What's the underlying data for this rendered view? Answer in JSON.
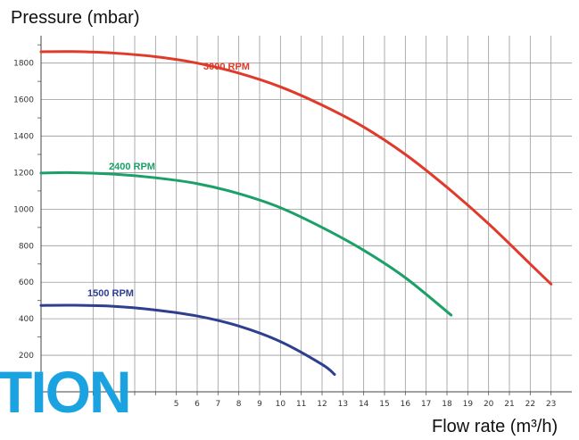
{
  "chart_data": {
    "type": "line",
    "ylabel": "Pressure (mbar)",
    "xlabel": "Flow rate (m³/h)",
    "xlim": [
      -1.5,
      24
    ],
    "ylim": [
      0,
      1950
    ],
    "xticks": [
      1,
      2,
      3,
      4,
      5,
      6,
      7,
      8,
      9,
      10,
      11,
      12,
      13,
      14,
      15,
      16,
      17,
      18,
      19,
      20,
      21,
      22,
      23
    ],
    "xtick_labels_visible": [
      "5",
      "6",
      "7",
      "8",
      "9",
      "10",
      "11",
      "12",
      "13",
      "14",
      "15",
      "16",
      "17",
      "18",
      "19",
      "20",
      "21",
      "22",
      "23"
    ],
    "yticks": [
      0,
      200,
      400,
      600,
      800,
      1000,
      1200,
      1400,
      1600,
      1800
    ],
    "ytick_labels_visible": [
      "200",
      "400",
      "600",
      "800",
      "1000",
      "1200",
      "1400",
      "1600",
      "1800"
    ],
    "grid": true,
    "series": [
      {
        "name": "3000 RPM",
        "color": "#e03a2a",
        "x": [
          -1.5,
          0,
          2,
          4,
          6,
          8,
          10,
          12,
          14,
          16,
          18,
          20,
          22,
          23
        ],
        "y": [
          1862,
          1863,
          1855,
          1835,
          1800,
          1745,
          1670,
          1570,
          1450,
          1300,
          1120,
          920,
          700,
          590
        ]
      },
      {
        "name": "2400 RPM",
        "color": "#1ba068",
        "x": [
          -1.5,
          0,
          2,
          4,
          6,
          8,
          10,
          12,
          14,
          16,
          18.2
        ],
        "y": [
          1198,
          1200,
          1192,
          1172,
          1140,
          1085,
          1008,
          900,
          775,
          625,
          420
        ]
      },
      {
        "name": "1500 RPM",
        "color": "#2f3f8f",
        "x": [
          -1.5,
          0,
          2,
          4,
          6,
          8,
          10,
          12,
          12.6
        ],
        "y": [
          473,
          474,
          468,
          448,
          415,
          360,
          275,
          150,
          95
        ]
      }
    ]
  },
  "watermark": "TION"
}
